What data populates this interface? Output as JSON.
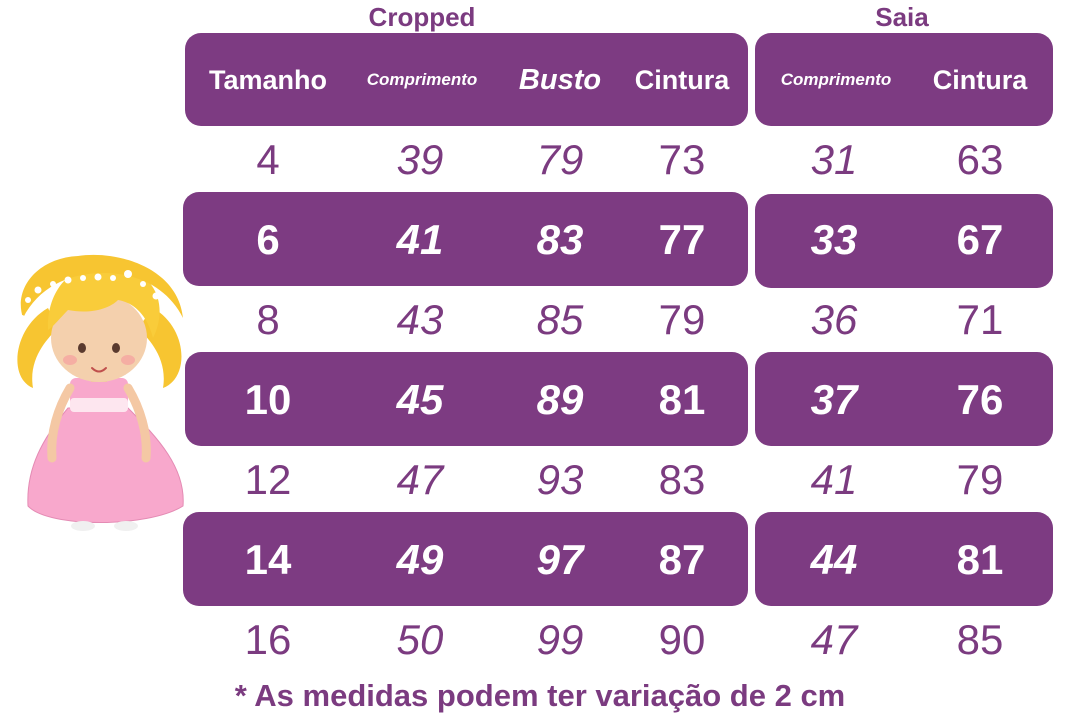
{
  "groups": {
    "cropped": "Cropped",
    "saia": "Saia"
  },
  "headers": {
    "tamanho": "Tamanho",
    "comprimento_cropped": "Comprimento",
    "busto": "Busto",
    "cintura_cropped": "Cintura",
    "comprimento_saia": "Comprimento",
    "cintura_saia": "Cintura"
  },
  "rows": [
    {
      "tamanho": "4",
      "comprimento_cropped": "39",
      "busto": "79",
      "cintura_cropped": "73",
      "comprimento_saia": "31",
      "cintura_saia": "63"
    },
    {
      "tamanho": "6",
      "comprimento_cropped": "41",
      "busto": "83",
      "cintura_cropped": "77",
      "comprimento_saia": "33",
      "cintura_saia": "67"
    },
    {
      "tamanho": "8",
      "comprimento_cropped": "43",
      "busto": "85",
      "cintura_cropped": "79",
      "comprimento_saia": "36",
      "cintura_saia": "71"
    },
    {
      "tamanho": "10",
      "comprimento_cropped": "45",
      "busto": "89",
      "cintura_cropped": "81",
      "comprimento_saia": "37",
      "cintura_saia": "76"
    },
    {
      "tamanho": "12",
      "comprimento_cropped": "47",
      "busto": "93",
      "cintura_cropped": "83",
      "comprimento_saia": "41",
      "cintura_saia": "79"
    },
    {
      "tamanho": "14",
      "comprimento_cropped": "49",
      "busto": "97",
      "cintura_cropped": "87",
      "comprimento_saia": "44",
      "cintura_saia": "81"
    },
    {
      "tamanho": "16",
      "comprimento_cropped": "50",
      "busto": "99",
      "cintura_cropped": "90",
      "comprimento_saia": "47",
      "cintura_saia": "85"
    }
  ],
  "footer": "* As medidas podem ter variação de 2 cm",
  "colors": {
    "accent": "#7d3b82",
    "text": "#7b3b80",
    "band_text": "#ffffff"
  },
  "illustration": "girl-in-pink-dress-illustration"
}
